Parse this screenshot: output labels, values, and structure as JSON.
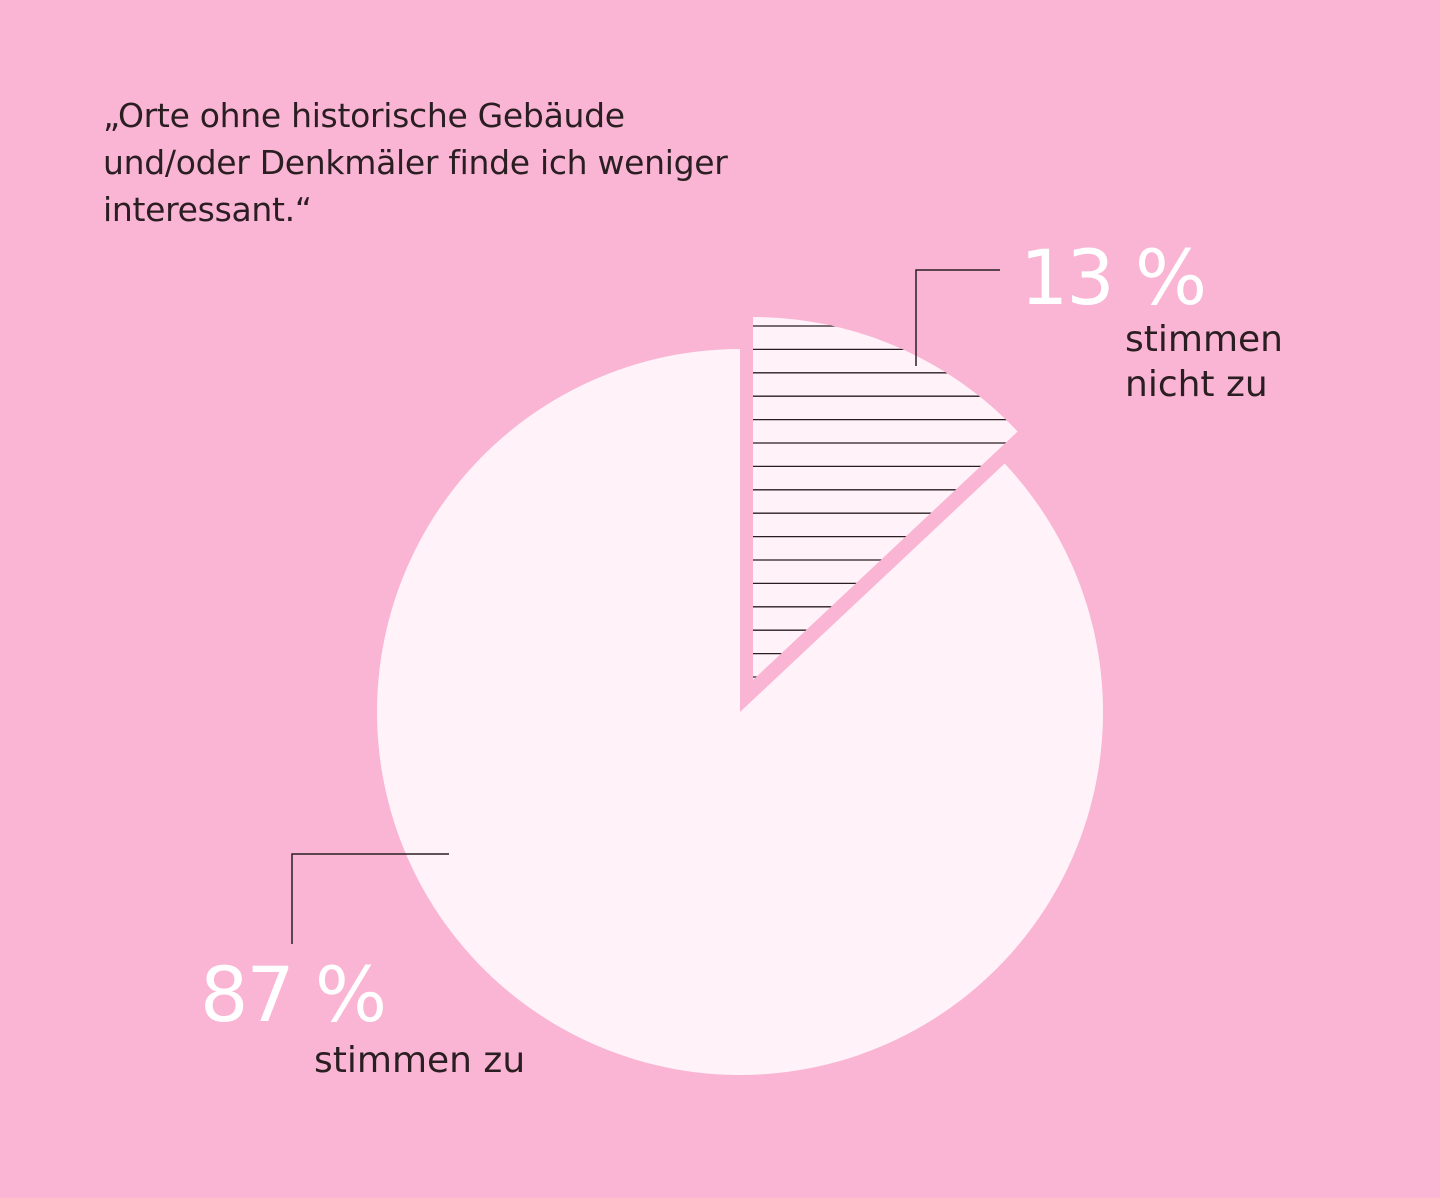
{
  "chart_data": {
    "type": "pie",
    "title": "„Orte ohne historische Gebäude und/oder Denkmäler finde ich weniger interessant.“",
    "slices": [
      {
        "label": "stimmen nicht zu",
        "value": 13,
        "value_label": "13 %",
        "pattern": "hatched",
        "exploded": true
      },
      {
        "label": "stimmen zu",
        "value": 87,
        "value_label": "87 %",
        "pattern": "solid",
        "exploded": false
      }
    ],
    "colors": {
      "background": "#F9B5D3",
      "slice": "#FFF2F8",
      "ink": "#2a1e22",
      "value_text": "#FFFFFF"
    }
  }
}
